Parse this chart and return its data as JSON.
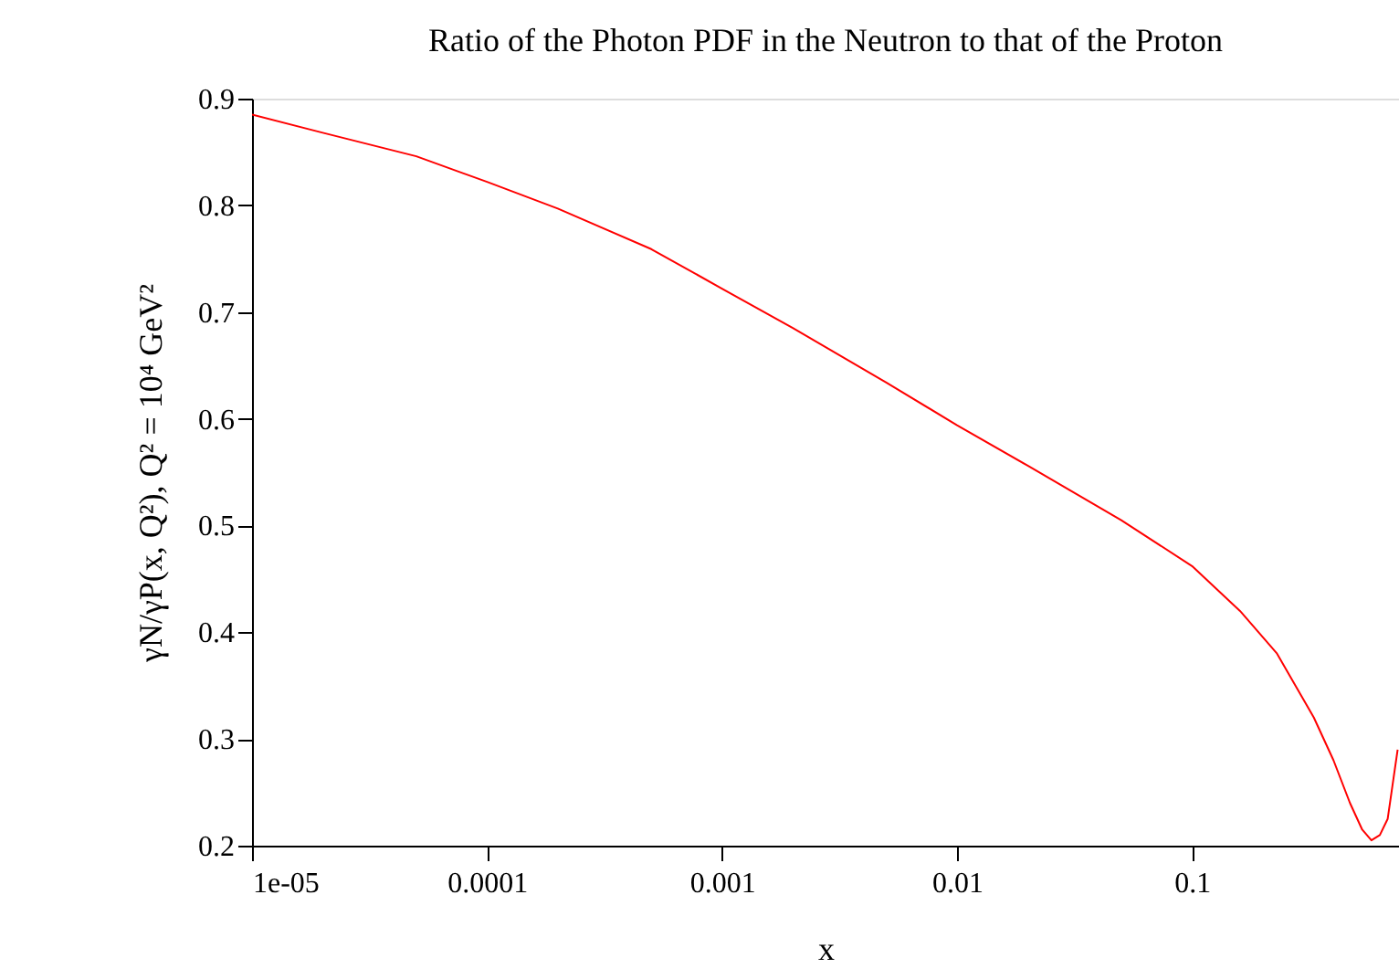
{
  "chart_data": {
    "type": "line",
    "title": "Ratio of the Photon PDF in the Neutron to that of the Proton",
    "xlabel": "x",
    "ylabel": "γN/γP(x, Q²), Q² = 10⁴ GeV²",
    "log": "x",
    "x": [
      1e-05,
      2e-05,
      5e-05,
      0.0001,
      0.0002,
      0.0005,
      0.001,
      0.002,
      0.005,
      0.01,
      0.02,
      0.05,
      0.1,
      0.16,
      0.23,
      0.33,
      0.4,
      0.47,
      0.53,
      0.58,
      0.63,
      0.68,
      0.75
    ],
    "series": [
      {
        "color": "#ff0000",
        "values": [
          0.885,
          0.868,
          0.846,
          0.822,
          0.797,
          0.759,
          0.722,
          0.685,
          0.634,
          0.594,
          0.556,
          0.505,
          0.462,
          0.42,
          0.38,
          0.32,
          0.28,
          0.24,
          0.215,
          0.205,
          0.21,
          0.225,
          0.29
        ]
      }
    ],
    "xlim": [
      1e-05,
      0.76
    ],
    "xticks": [
      {
        "value": 1e-05,
        "label": "1e-05"
      },
      {
        "value": 0.0001,
        "label": "0.0001"
      },
      {
        "value": 0.001,
        "label": "0.001"
      },
      {
        "value": 0.01,
        "label": "0.01"
      },
      {
        "value": 0.1,
        "label": "0.1"
      }
    ],
    "ylim": [
      0.2,
      0.9
    ],
    "yticks": [
      0.2,
      0.3,
      0.4,
      0.5,
      0.6,
      0.7,
      0.8,
      0.9
    ],
    "grid": false
  }
}
